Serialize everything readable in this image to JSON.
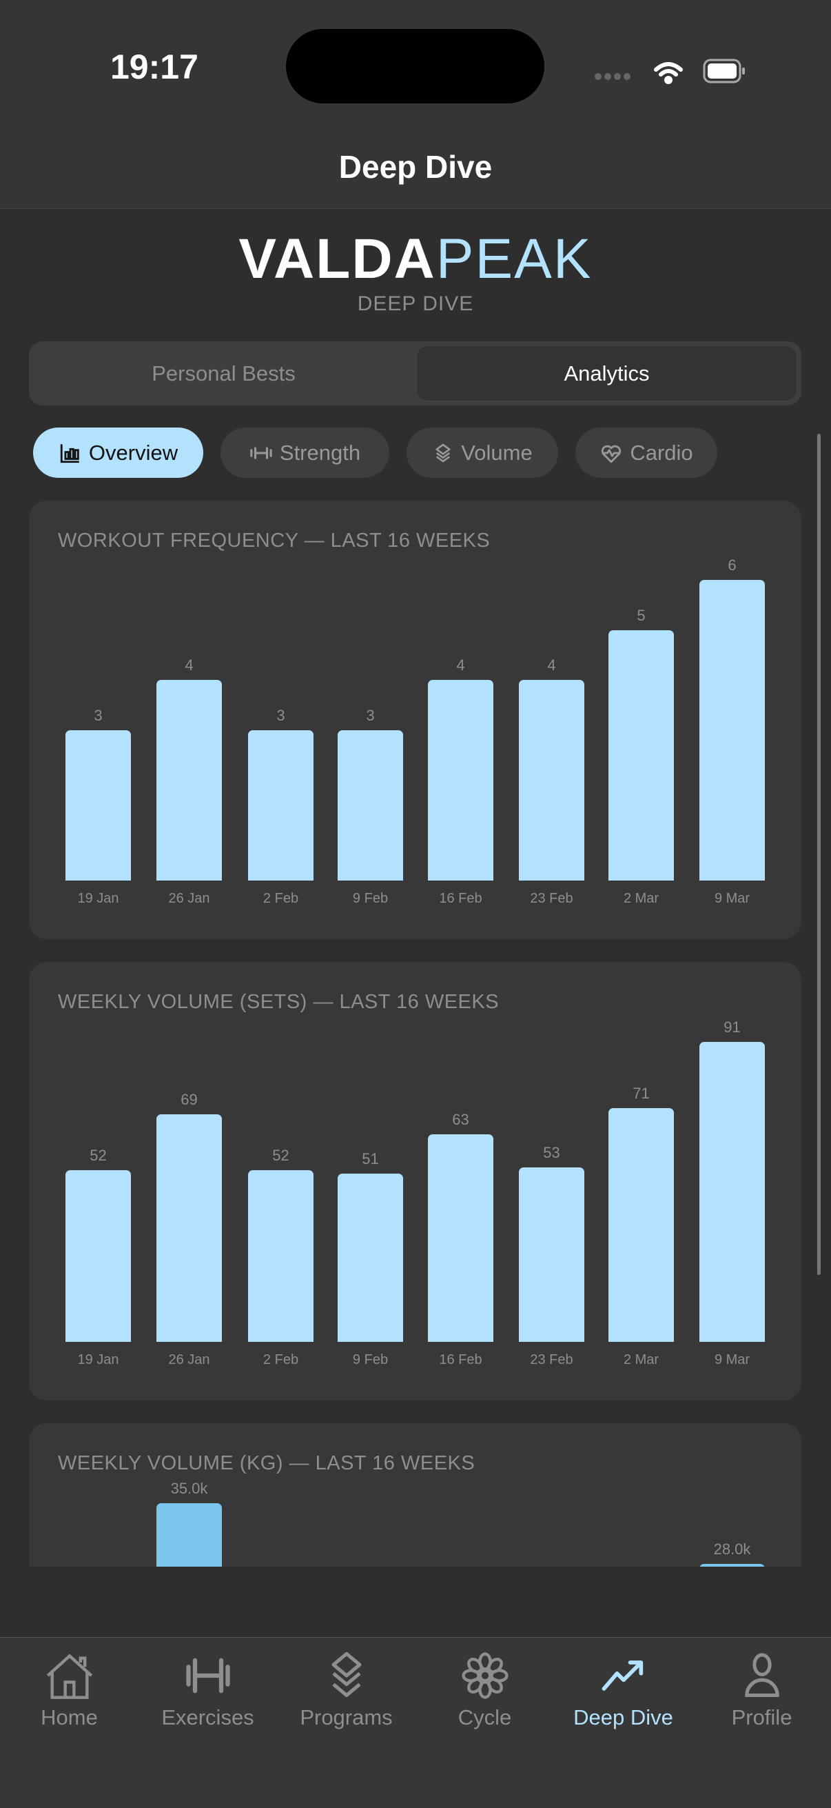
{
  "status": {
    "time": "19:17"
  },
  "header": {
    "title": "Deep Dive"
  },
  "logo": {
    "part1": "VALDA",
    "part2": "PEAK",
    "subtitle": "DEEP DIVE"
  },
  "segments": [
    {
      "label": "Personal Bests",
      "active": false
    },
    {
      "label": "Analytics",
      "active": true
    }
  ],
  "chips": [
    {
      "label": "Overview",
      "icon": "bar-chart-icon",
      "active": true
    },
    {
      "label": "Strength",
      "icon": "dumbbell-icon"
    },
    {
      "label": "Volume",
      "icon": "layers-icon"
    },
    {
      "label": "Cardio",
      "icon": "heart-pulse-icon"
    }
  ],
  "accent": "#b3e2ff",
  "chart_data": [
    {
      "type": "bar",
      "title": "WORKOUT FREQUENCY — LAST 16 WEEKS",
      "categories": [
        "19 Jan",
        "26 Jan",
        "2 Feb",
        "9 Feb",
        "16 Feb",
        "23 Feb",
        "2 Mar",
        "9 Mar"
      ],
      "values": [
        3,
        4,
        3,
        3,
        4,
        4,
        5,
        6
      ],
      "labels": [
        "3",
        "4",
        "3",
        "3",
        "4",
        "4",
        "5",
        "6"
      ],
      "color": "#b3e2ff"
    },
    {
      "type": "bar",
      "title": "WEEKLY VOLUME (SETS) — LAST 16 WEEKS",
      "categories": [
        "19 Jan",
        "26 Jan",
        "2 Feb",
        "9 Feb",
        "16 Feb",
        "23 Feb",
        "2 Mar",
        "9 Mar"
      ],
      "values": [
        52,
        69,
        52,
        51,
        63,
        53,
        71,
        91
      ],
      "labels": [
        "52",
        "69",
        "52",
        "51",
        "63",
        "53",
        "71",
        "91"
      ],
      "color": "#b3e2ff"
    },
    {
      "type": "bar",
      "title": "WEEKLY VOLUME (KG) — LAST 16 WEEKS",
      "values": [
        null,
        35000,
        null,
        null,
        null,
        null,
        null,
        28000
      ],
      "labels": [
        null,
        "35.0k",
        null,
        null,
        null,
        null,
        null,
        "28.0k"
      ],
      "color": "#7cc6ee"
    }
  ],
  "tabs": [
    {
      "label": "Home",
      "icon": "home-icon"
    },
    {
      "label": "Exercises",
      "icon": "dumbbell-icon"
    },
    {
      "label": "Programs",
      "icon": "layers-icon"
    },
    {
      "label": "Cycle",
      "icon": "flower-icon"
    },
    {
      "label": "Deep Dive",
      "icon": "trending-up-icon",
      "active": true
    },
    {
      "label": "Profile",
      "icon": "person-icon"
    }
  ]
}
